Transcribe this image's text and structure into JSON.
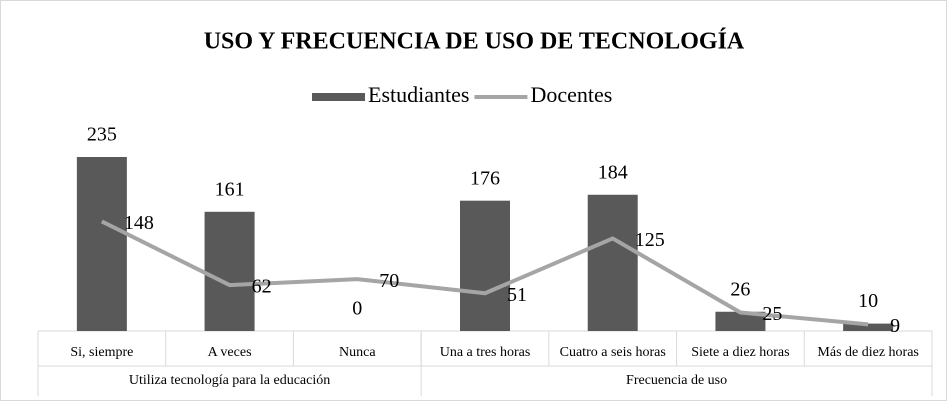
{
  "chart_data": {
    "type": "bar",
    "title": "USO Y FRECUENCIA DE USO DE TECNOLOGÍA",
    "groups": [
      {
        "name": "Utiliza tecnología para la educación",
        "categories": [
          "Si, siempre",
          "A veces",
          "Nunca"
        ]
      },
      {
        "name": "Frecuencia de uso",
        "categories": [
          "Una a tres horas",
          "Cuatro a seis horas",
          "Siete a diez horas",
          "Más de diez horas"
        ]
      }
    ],
    "series": [
      {
        "name": "Estudiantes",
        "type": "bar",
        "color": "#595959",
        "values": [
          235,
          161,
          0,
          176,
          184,
          26,
          10
        ]
      },
      {
        "name": "Docentes",
        "type": "line",
        "color": "#a5a5a5",
        "values": [
          148,
          62,
          70,
          51,
          125,
          25,
          9
        ]
      }
    ]
  }
}
